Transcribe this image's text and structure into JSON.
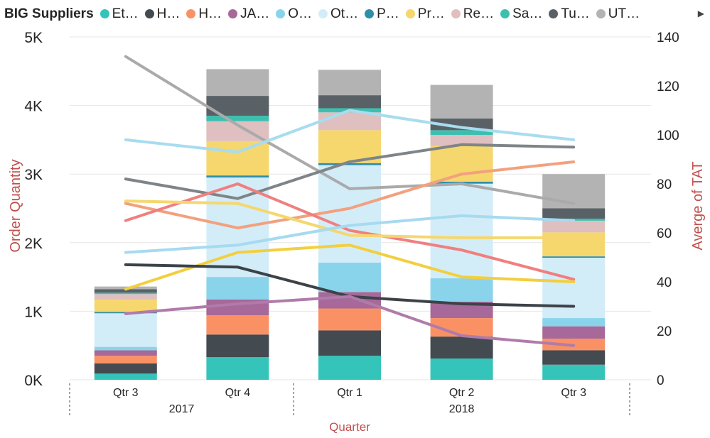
{
  "chart_data": {
    "type": "bar",
    "subtype": "stacked-bar-with-lines",
    "legend": {
      "title": "BIG Suppliers",
      "placement": "top-left",
      "items": [
        {
          "label": "Et…",
          "color": "#35C4B9"
        },
        {
          "label": "H…",
          "color": "#434A50"
        },
        {
          "label": "H…",
          "color": "#FA9165"
        },
        {
          "label": "JA…",
          "color": "#A66999"
        },
        {
          "label": "O…",
          "color": "#8AD4EB"
        },
        {
          "label": "Ot…",
          "color": "#D3EDF8"
        },
        {
          "label": "P…",
          "color": "#2F8FA8"
        },
        {
          "label": "Pr…",
          "color": "#F5D76E"
        },
        {
          "label": "Re…",
          "color": "#DFBFBF"
        },
        {
          "label": "Sa…",
          "color": "#3DBFB0"
        },
        {
          "label": "Tu…",
          "color": "#5A6166"
        },
        {
          "label": "UT…",
          "color": "#B3B3B3"
        }
      ],
      "more_icon": "caret-right-icon"
    },
    "categories": [
      "Qtr 3",
      "Qtr 4",
      "Qtr 1",
      "Qtr 2",
      "Qtr 3"
    ],
    "groups": [
      {
        "label": "2017",
        "span": [
          0,
          1
        ]
      },
      {
        "label": "2018",
        "span": [
          2,
          4
        ]
      }
    ],
    "xlabel": "Quarter",
    "ylabel_left": "Order Quantity",
    "ylabel_right": "Averge of TAT",
    "ylim_left": [
      0,
      5000
    ],
    "ylim_right": [
      0,
      140
    ],
    "yticks_left": [
      {
        "value": 0,
        "label": "0K"
      },
      {
        "value": 1000,
        "label": "1K"
      },
      {
        "value": 2000,
        "label": "2K"
      },
      {
        "value": 3000,
        "label": "3K"
      },
      {
        "value": 4000,
        "label": "4K"
      },
      {
        "value": 5000,
        "label": "5K"
      }
    ],
    "yticks_right": [
      0,
      20,
      40,
      60,
      80,
      100,
      120,
      140
    ],
    "grid": true,
    "bar_series": [
      {
        "color": "#35C4B9",
        "values": [
          90,
          330,
          350,
          310,
          220
        ]
      },
      {
        "color": "#434A50",
        "values": [
          150,
          330,
          370,
          320,
          210
        ]
      },
      {
        "color": "#FA9165",
        "values": [
          110,
          280,
          320,
          270,
          170
        ]
      },
      {
        "color": "#A66999",
        "values": [
          80,
          230,
          240,
          240,
          180
        ]
      },
      {
        "color": "#8AD4EB",
        "values": [
          50,
          330,
          430,
          340,
          120
        ]
      },
      {
        "color": "#D3EDF8",
        "values": [
          490,
          1450,
          1420,
          1380,
          880
        ]
      },
      {
        "color": "#2F8FA8",
        "values": [
          20,
          30,
          30,
          30,
          20
        ]
      },
      {
        "color": "#F5D76E",
        "values": [
          180,
          500,
          480,
          520,
          350
        ]
      },
      {
        "color": "#DFBFBF",
        "values": [
          80,
          290,
          260,
          160,
          170
        ]
      },
      {
        "color": "#3DBFB0",
        "values": [
          20,
          80,
          60,
          70,
          30
        ]
      },
      {
        "color": "#5A6166",
        "values": [
          50,
          290,
          190,
          170,
          150
        ]
      },
      {
        "color": "#B3B3B3",
        "values": [
          40,
          390,
          370,
          490,
          500
        ]
      }
    ],
    "line_series": [
      {
        "color": "#AAAAAA",
        "values": [
          132,
          104,
          78,
          80,
          72
        ]
      },
      {
        "color": "#A8DCEF",
        "values": [
          98,
          93,
          110,
          103,
          98
        ]
      },
      {
        "color": "#7F8487",
        "values": [
          82,
          74,
          89,
          96,
          95
        ]
      },
      {
        "color": "#F2A17E",
        "values": [
          72,
          62,
          70,
          84,
          89
        ]
      },
      {
        "color": "#F07F7F",
        "values": [
          65,
          80,
          61,
          53,
          41
        ]
      },
      {
        "color": "#F5D76E",
        "values": [
          73,
          72,
          59,
          58,
          58
        ]
      },
      {
        "color": "#A6DAF0",
        "values": [
          52,
          55,
          63,
          67,
          65
        ]
      },
      {
        "color": "#F2CF3E",
        "values": [
          37,
          52,
          55,
          42,
          40
        ]
      },
      {
        "color": "#3C4348",
        "values": [
          47,
          46,
          34,
          31,
          30
        ]
      },
      {
        "color": "#B07BAA",
        "values": [
          27,
          31,
          34,
          18,
          14
        ]
      }
    ]
  }
}
